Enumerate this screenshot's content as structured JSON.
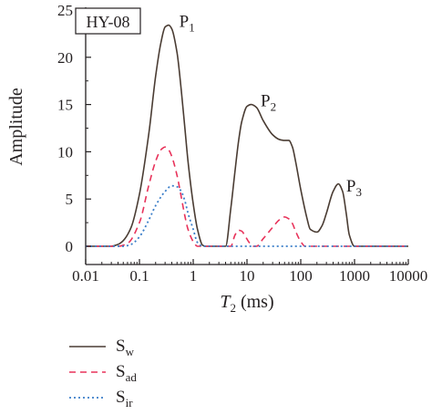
{
  "chart_data": {
    "type": "line",
    "panel_label": "HY-08",
    "xlabel": "T",
    "xlabel_sub": "2",
    "xlabel_unit": " (ms)",
    "ylabel": "Amplitude",
    "xscale": "log",
    "xlim": [
      0.01,
      10000
    ],
    "ylim": [
      0,
      25
    ],
    "xticks": [
      0.01,
      0.1,
      1,
      10,
      100,
      1000,
      10000
    ],
    "xtick_labels": [
      "0.01",
      "0.1",
      "1",
      "10",
      "100",
      "1000",
      "10000"
    ],
    "yticks": [
      0,
      5,
      10,
      15,
      20,
      25
    ],
    "ytick_labels": [
      "0",
      "5",
      "10",
      "15",
      "20",
      "25"
    ],
    "grid": false,
    "legend_position": "bottom-left, below plot",
    "annotations": [
      {
        "text": "P",
        "sub": "1",
        "x": 0.55,
        "y": 23.2
      },
      {
        "text": "P",
        "sub": "2",
        "x": 18,
        "y": 14.8
      },
      {
        "text": "P",
        "sub": "3",
        "x": 700,
        "y": 5.8
      }
    ],
    "series": [
      {
        "name": "S",
        "sub": "w",
        "color": "#4a3c33",
        "dash": "solid",
        "x": [
          0.01,
          0.03,
          0.04,
          0.05,
          0.07,
          0.1,
          0.15,
          0.2,
          0.25,
          0.3,
          0.35,
          0.4,
          0.5,
          0.6,
          0.7,
          0.8,
          1.0,
          1.2,
          1.5,
          1.7,
          2,
          4,
          5,
          6,
          7,
          8,
          10,
          12,
          15,
          20,
          30,
          40,
          50,
          60,
          70,
          80,
          100,
          130,
          150,
          200,
          250,
          300,
          400,
          500,
          600,
          700,
          800,
          1000,
          10000
        ],
        "y": [
          0,
          0,
          0.2,
          0.6,
          2.0,
          5.5,
          12.0,
          18.0,
          21.5,
          23.2,
          23.4,
          23.0,
          20.5,
          16.5,
          12.5,
          9.0,
          4.5,
          1.8,
          0.1,
          0,
          0,
          0,
          4.0,
          8.0,
          11.2,
          13.2,
          14.8,
          15.0,
          14.7,
          13.3,
          11.8,
          11.3,
          11.2,
          11.2,
          10.5,
          9.0,
          6.0,
          3.0,
          1.8,
          1.5,
          2.2,
          3.5,
          5.8,
          6.6,
          5.8,
          3.5,
          1.2,
          0,
          0
        ]
      },
      {
        "name": "S",
        "sub": "ad",
        "color": "#e8325a",
        "dash": "dashed",
        "x": [
          0.01,
          0.04,
          0.06,
          0.1,
          0.15,
          0.2,
          0.25,
          0.3,
          0.35,
          0.4,
          0.5,
          0.6,
          0.7,
          0.8,
          1.0,
          1.2,
          1.5,
          2,
          5,
          6,
          7,
          8,
          9,
          11,
          13,
          15,
          20,
          30,
          40,
          50,
          60,
          70,
          80,
          100,
          120,
          10000
        ],
        "y": [
          0,
          0,
          0.3,
          2.5,
          6.5,
          9.0,
          10.2,
          10.5,
          10.2,
          9.5,
          7.5,
          5.2,
          3.2,
          1.8,
          0.5,
          0,
          0,
          0,
          0,
          1.2,
          1.7,
          1.6,
          1.2,
          0.4,
          0,
          0,
          0.8,
          2.0,
          2.8,
          3.1,
          2.9,
          2.4,
          1.6,
          0.5,
          0,
          0
        ]
      },
      {
        "name": "S",
        "sub": "ir",
        "color": "#3b7ec9",
        "dash": "dotted",
        "x": [
          0.01,
          0.05,
          0.07,
          0.1,
          0.15,
          0.2,
          0.3,
          0.4,
          0.5,
          0.6,
          0.7,
          0.8,
          1.0,
          1.2,
          1.5,
          10000
        ],
        "y": [
          0,
          0,
          0.2,
          1.0,
          2.8,
          4.3,
          5.8,
          6.4,
          6.3,
          5.8,
          4.8,
          3.5,
          1.8,
          0.4,
          0,
          0
        ]
      }
    ]
  }
}
